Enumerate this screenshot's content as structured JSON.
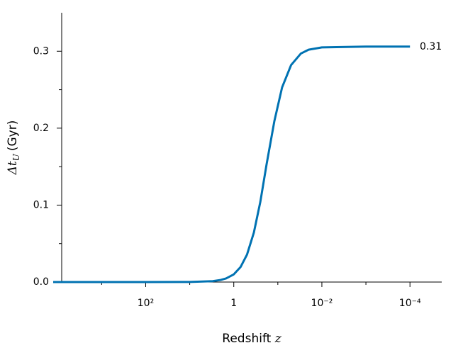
{
  "chart_data": {
    "type": "line",
    "xlabel": {
      "text": "Redshift",
      "symbol": "z"
    },
    "ylabel": {
      "symbol": "Δt",
      "subscript": "U",
      "unit": "(Gyr)"
    },
    "x": [
      12600,
      1000,
      100,
      10,
      3,
      2,
      1.5,
      1,
      0.7,
      0.5,
      0.35,
      0.25,
      0.18,
      0.12,
      0.08,
      0.05,
      0.03,
      0.02,
      0.01,
      0.001,
      0.0001
    ],
    "series": [
      {
        "name": "Δt_U",
        "color": "#0072b2",
        "values": [
          0,
          0,
          0,
          0.0001,
          0.0012,
          0.0027,
          0.0047,
          0.01,
          0.0196,
          0.0358,
          0.0643,
          0.104,
          0.153,
          0.209,
          0.253,
          0.282,
          0.297,
          0.302,
          0.305,
          0.306,
          0.306
        ]
      }
    ],
    "xscale": "log",
    "xreversed": true,
    "xlim": [
      12600,
      1.9e-05
    ],
    "xticks": [
      {
        "value": 100,
        "label": "10²"
      },
      1,
      {
        "value": 0.01,
        "label": "10⁻²"
      },
      {
        "value": 0.0001,
        "label": "10⁻⁴"
      }
    ],
    "xminorticks": [
      1000,
      10,
      0.1,
      0.001
    ],
    "ylim": [
      0,
      0.35
    ],
    "yticks": [
      {
        "value": 0,
        "label": "0.0"
      },
      0.1,
      0.2,
      0.3
    ],
    "yminorticks": [
      0.05,
      0.15,
      0.25
    ],
    "annotation": {
      "text": "0.31",
      "value": 0.306
    }
  }
}
